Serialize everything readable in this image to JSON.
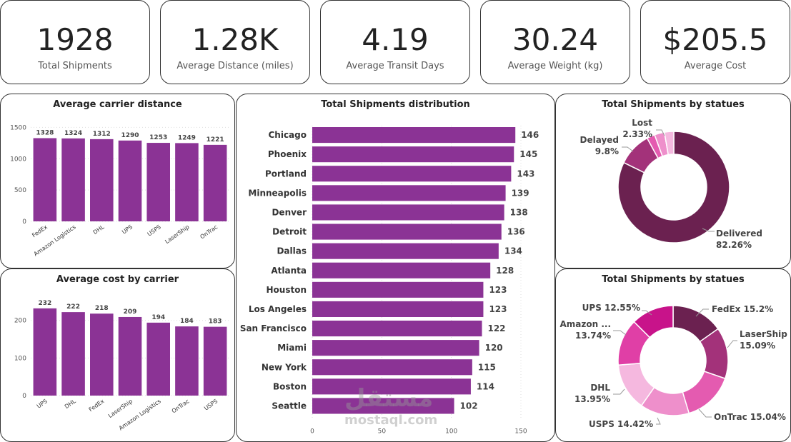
{
  "kpis": [
    {
      "value": "1928",
      "label": "Total Shipments"
    },
    {
      "value": "1.28K",
      "label": "Average Distance (miles)"
    },
    {
      "value": "4.19",
      "label": "Average Transit Days"
    },
    {
      "value": "30.24",
      "label": "Average Weight (kg)"
    },
    {
      "value": "$205.5",
      "label": "Average Cost"
    }
  ],
  "watermark": {
    "logo": "مستقل",
    "text": "mostaql.com"
  },
  "chart_data": [
    {
      "id": "distance",
      "type": "bar",
      "title": "Average carrier distance",
      "categories": [
        "FedEx",
        "Amazon Logistics",
        "DHL",
        "UPS",
        "USPS",
        "LaserShip",
        "OnTrac"
      ],
      "values": [
        1328,
        1324,
        1312,
        1290,
        1253,
        1249,
        1221
      ],
      "yticks": [
        0,
        500,
        1000,
        1500
      ],
      "ylim": [
        0,
        1550
      ],
      "color": "#8B3395",
      "grid": true
    },
    {
      "id": "cost",
      "type": "bar",
      "title": "Average cost by carrier",
      "categories": [
        "UPS",
        "DHL",
        "FedEx",
        "LaserShip",
        "Amazon Logistics",
        "OnTrac",
        "USPS"
      ],
      "values": [
        232,
        222,
        218,
        209,
        194,
        184,
        183
      ],
      "yticks": [
        0,
        100,
        200
      ],
      "ylim": [
        0,
        245
      ],
      "color": "#8B3395",
      "grid": true
    },
    {
      "id": "distribution",
      "type": "bar",
      "orientation": "horizontal",
      "title": "Total Shipments distribution",
      "categories": [
        "Chicago",
        "Phoenix",
        "Portland",
        "Minneapolis",
        "Denver",
        "Detroit",
        "Dallas",
        "Atlanta",
        "Houston",
        "Los Angeles",
        "San Francisco",
        "Miami",
        "New York",
        "Boston",
        "Seattle"
      ],
      "values": [
        146,
        145,
        143,
        139,
        138,
        136,
        134,
        128,
        123,
        123,
        122,
        120,
        115,
        114,
        102
      ],
      "xticks": [
        0,
        50,
        100,
        150
      ],
      "xlim": [
        0,
        150
      ],
      "color": "#8B3395",
      "grid": true
    },
    {
      "id": "status",
      "type": "pie",
      "donut": true,
      "title": "Total Shipments by statues",
      "slices": [
        {
          "name": "Delivered",
          "value": 82.26,
          "label": "82.26%",
          "color": "#6B2150"
        },
        {
          "name": "Delayed",
          "value": 9.8,
          "label": "9.8%",
          "color": "#A3327A"
        },
        {
          "name": "Lost",
          "value": 2.33,
          "label": "2.33%",
          "color": "#E45BB0"
        },
        {
          "name": "",
          "value": 2.9,
          "label": "",
          "color": "#EE8FCB"
        },
        {
          "name": "",
          "value": 2.71,
          "label": "",
          "color": "#F5B8DF"
        }
      ]
    },
    {
      "id": "carrier_share",
      "type": "pie",
      "donut": true,
      "title": "Total Shipments by statues",
      "slices": [
        {
          "name": "FedEx",
          "value": 15.2,
          "label": "15.2%",
          "color": "#6B2150"
        },
        {
          "name": "LaserShip",
          "value": 15.09,
          "label": "15.09%",
          "color": "#A3327A"
        },
        {
          "name": "OnTrac",
          "value": 15.04,
          "label": "15.04%",
          "color": "#E45BB0"
        },
        {
          "name": "USPS",
          "value": 14.42,
          "label": "14.42%",
          "color": "#EE8FCB"
        },
        {
          "name": "DHL",
          "value": 13.95,
          "label": "13.95%",
          "color": "#F5B8DF"
        },
        {
          "name": "Amazon ...",
          "value": 13.74,
          "label": "13.74%",
          "color": "#E03FA6"
        },
        {
          "name": "UPS",
          "value": 12.55,
          "label": "12.55%",
          "color": "#C8138A"
        }
      ]
    }
  ]
}
